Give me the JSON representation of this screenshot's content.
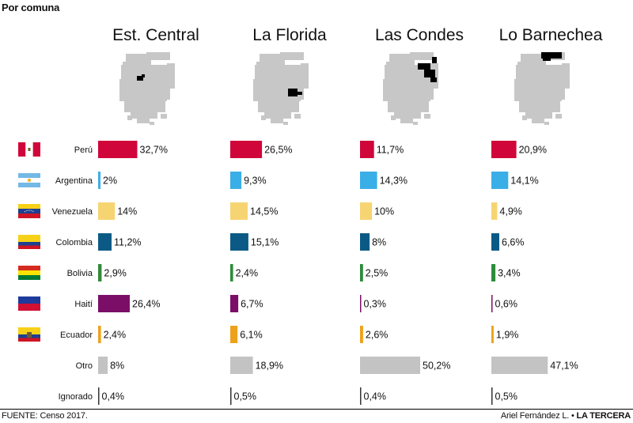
{
  "section_title": "Por comuna",
  "footer": {
    "source": "FUENTE: Censo 2017.",
    "author": "Ariel Fernández L. •",
    "brand": "LA TERCERA"
  },
  "colors": {
    "Perú": "#d0053a",
    "Argentina": "#3aaee6",
    "Venezuela": "#f6d472",
    "Colombia": "#0b5a86",
    "Bolivia": "#2e8b3a",
    "Haití": "#7b0f67",
    "Ecuador": "#eda21d",
    "Otro": "#c3c3c3",
    "Ignorado": "#333333",
    "map_fill": "#c7c7c7",
    "map_highlight": "#000000"
  },
  "flag_icons": {
    "Perú": "peru-flag-icon",
    "Argentina": "argentina-flag-icon",
    "Venezuela": "venezuela-flag-icon",
    "Colombia": "colombia-flag-icon",
    "Bolivia": "bolivia-flag-icon",
    "Haití": "haiti-flag-icon",
    "Ecuador": "ecuador-flag-icon"
  },
  "map_icons": [
    "santiago-map-est-central-icon",
    "santiago-map-la-florida-icon",
    "santiago-map-las-condes-icon",
    "santiago-map-lo-barnechea-icon"
  ],
  "chart_data": {
    "type": "bar",
    "orientation": "horizontal",
    "grouping": "small-multiples",
    "categories": [
      "Perú",
      "Argentina",
      "Venezuela",
      "Colombia",
      "Bolivia",
      "Haití",
      "Ecuador",
      "Otro",
      "Ignorado"
    ],
    "series": [
      {
        "name": "Est. Central",
        "values": [
          32.7,
          2,
          14,
          11.2,
          2.9,
          26.4,
          2.4,
          8,
          0.4
        ],
        "labels": [
          "32,7%",
          "2%",
          "14%",
          "11,2%",
          "2,9%",
          "26,4%",
          "2,4%",
          "8%",
          "0,4%"
        ]
      },
      {
        "name": "La Florida",
        "values": [
          26.5,
          9.3,
          14.5,
          15.1,
          2.4,
          6.7,
          6.1,
          18.9,
          0.5
        ],
        "labels": [
          "26,5%",
          "9,3%",
          "14,5%",
          "15,1%",
          "2,4%",
          "6,7%",
          "6,1%",
          "18,9%",
          "0,5%"
        ]
      },
      {
        "name": "Las Condes",
        "values": [
          11.7,
          14.3,
          10,
          8,
          2.5,
          0.3,
          2.6,
          50.2,
          0.4
        ],
        "labels": [
          "11,7%",
          "14,3%",
          "10%",
          "8%",
          "2,5%",
          "0,3%",
          "2,6%",
          "50,2%",
          "0,4%"
        ]
      },
      {
        "name": "Lo Barnechea",
        "values": [
          20.9,
          14.1,
          4.9,
          6.6,
          3.4,
          0.6,
          1.9,
          47.1,
          0.5
        ],
        "labels": [
          "20,9%",
          "14,1%",
          "4,9%",
          "6,6%",
          "3,4%",
          "0,6%",
          "1,9%",
          "47,1%",
          "0,5%"
        ]
      }
    ],
    "xlim": [
      0,
      50.2
    ],
    "axes_visible": false,
    "grid": false,
    "legend": "none"
  }
}
